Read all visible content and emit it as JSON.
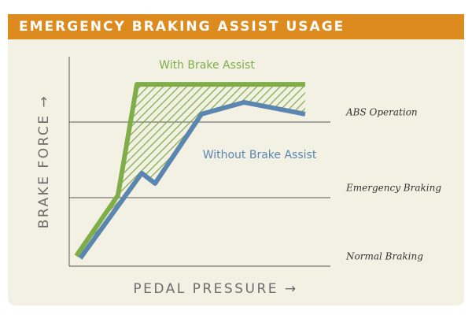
{
  "chart_data": {
    "type": "line",
    "title": "EMERGENCY BRAKING ASSIST USAGE",
    "x_label": "PEDAL PRESSURE →",
    "y_label": "BRAKE FORCE →",
    "xlim": [
      0,
      100
    ],
    "ylim": [
      0,
      100
    ],
    "series": [
      {
        "name": "With Brake Assist",
        "color": "#7fad4a",
        "x": [
          2.5,
          17.2,
          23.9,
          83.3
        ],
        "values": [
          4.9,
          33.8,
          86.8,
          86.8
        ]
      },
      {
        "name": "Without Brake Assist",
        "color": "#5b86b0",
        "x": [
          3.9,
          25.6,
          30.3,
          46.7,
          61.7,
          83.3
        ],
        "values": [
          3.8,
          44.4,
          39.5,
          72.6,
          78.2,
          72.6
        ]
      }
    ],
    "reference_lines": [
      {
        "label": "ABS Operation",
        "value": 68.8
      },
      {
        "label": "Emergency Braking",
        "value": 32.7
      },
      {
        "label": "Normal Braking",
        "value": 0
      }
    ],
    "hatch_between_series": true
  }
}
